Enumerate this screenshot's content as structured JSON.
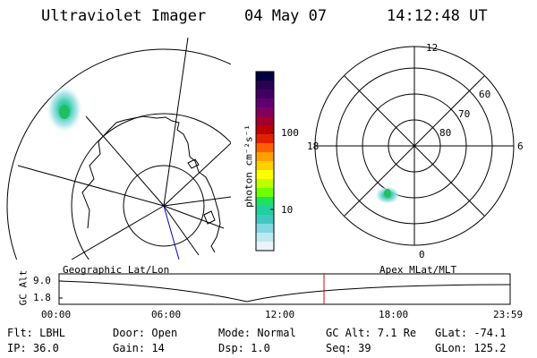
{
  "header": {
    "instrument": "Ultraviolet Imager",
    "date": "04 May 07",
    "time": "14:12:48 UT"
  },
  "left_panel": {
    "label": "Geographic Lat/Lon"
  },
  "right_panel": {
    "label": "Apex MLat/MLT",
    "mlt_labels": {
      "top": "12",
      "left": "18",
      "right": "6",
      "bottom": "0"
    },
    "lat_labels": [
      "60",
      "70",
      "80"
    ]
  },
  "colorbar": {
    "unit": "photon cm⁻²s⁻¹",
    "ticks": [
      "100",
      "10"
    ],
    "colors": [
      "#000040",
      "#2a0050",
      "#400060",
      "#600070",
      "#800060",
      "#a00030",
      "#c00000",
      "#e02000",
      "#ff6000",
      "#ffa000",
      "#ffd000",
      "#ffff00",
      "#c0ff00",
      "#70ff00",
      "#20e060",
      "#20d0a0",
      "#40c8c0",
      "#80d8e0",
      "#c0e8f0",
      "#e8f4f8"
    ]
  },
  "timeline": {
    "ylabel": "GC Alt",
    "y_ticks": [
      "9.0",
      "1.8"
    ],
    "x_ticks": [
      "00:00",
      "06:00",
      "12:00",
      "18:00",
      "23:59"
    ]
  },
  "info": {
    "filter": "Flt: LBHL",
    "ip": "IP: 36.0",
    "door": "Door: Open",
    "gain": "Gain: 14",
    "mode": "Mode: Normal",
    "dsp": "Dsp:     1.0",
    "gc_alt": "GC Alt: 7.1 Re",
    "seq": "Seq: 39",
    "glat": "GLat: -74.1",
    "glon": "GLon: 125.2"
  }
}
